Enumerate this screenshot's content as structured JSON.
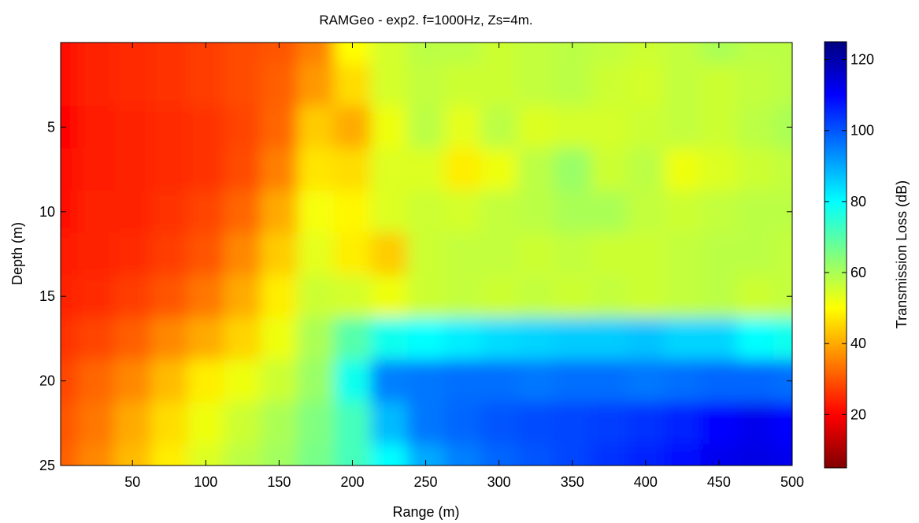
{
  "chart_data": {
    "type": "heatmap",
    "title": "RAMGeo - exp2. f=1000Hz, Zs=4m.",
    "xlabel": "Range (m)",
    "ylabel": "Depth (m)",
    "colorbar_label": "Transmission Loss (dB)",
    "xlim": [
      1,
      500
    ],
    "ylim": [
      0,
      25
    ],
    "y_reversed": true,
    "x_ticks": [
      50,
      100,
      150,
      200,
      250,
      300,
      350,
      400,
      450,
      500
    ],
    "y_ticks": [
      5,
      10,
      15,
      20,
      25
    ],
    "clim": [
      5,
      125
    ],
    "colorbar_ticks": [
      20,
      40,
      60,
      80,
      100,
      120
    ],
    "colormap": "jet-reversed",
    "x": [
      0,
      25,
      50,
      75,
      100,
      125,
      150,
      175,
      200,
      225,
      250,
      275,
      300,
      325,
      350,
      375,
      400,
      425,
      450,
      475,
      500
    ],
    "y": [
      0,
      2.5,
      5,
      7.5,
      10,
      12.5,
      15,
      17.5,
      20,
      22.5,
      25
    ],
    "z": [
      [
        22,
        24,
        25,
        26,
        27,
        29,
        30,
        35,
        50,
        55,
        58,
        58,
        56,
        57,
        58,
        57,
        56,
        57,
        60,
        58,
        58
      ],
      [
        21,
        24,
        25,
        26,
        27,
        29,
        31,
        38,
        46,
        55,
        57,
        56,
        56,
        57,
        58,
        56,
        55,
        57,
        56,
        57,
        58
      ],
      [
        20,
        23,
        24,
        25,
        26,
        28,
        32,
        44,
        40,
        52,
        58,
        53,
        58,
        54,
        55,
        55,
        56,
        57,
        56,
        58,
        60
      ],
      [
        21,
        23,
        24,
        25,
        26,
        29,
        35,
        47,
        46,
        54,
        54,
        48,
        52,
        58,
        62,
        56,
        58,
        52,
        54,
        56,
        57
      ],
      [
        22,
        24,
        24,
        26,
        28,
        32,
        40,
        51,
        49,
        54,
        56,
        55,
        57,
        58,
        60,
        60,
        57,
        56,
        57,
        58,
        58
      ],
      [
        23,
        24,
        25,
        27,
        30,
        36,
        44,
        53,
        48,
        44,
        56,
        57,
        57,
        56,
        57,
        56,
        56,
        57,
        58,
        58,
        57
      ],
      [
        24,
        25,
        27,
        30,
        34,
        40,
        48,
        56,
        55,
        52,
        56,
        57,
        56,
        57,
        56,
        57,
        56,
        57,
        58,
        56,
        57
      ],
      [
        26,
        28,
        31,
        36,
        40,
        45,
        52,
        60,
        70,
        78,
        80,
        82,
        84,
        85,
        86,
        86,
        87,
        85,
        85,
        80,
        78
      ],
      [
        28,
        32,
        36,
        42,
        48,
        52,
        56,
        62,
        78,
        95,
        96,
        97,
        97,
        96,
        97,
        97,
        96,
        97,
        98,
        98,
        97
      ],
      [
        30,
        34,
        40,
        46,
        52,
        56,
        60,
        65,
        72,
        88,
        96,
        98,
        100,
        101,
        102,
        103,
        104,
        106,
        110,
        112,
        110
      ],
      [
        31,
        36,
        42,
        48,
        54,
        58,
        61,
        66,
        72,
        80,
        90,
        95,
        98,
        100,
        102,
        104,
        106,
        108,
        112,
        113,
        112
      ]
    ]
  }
}
